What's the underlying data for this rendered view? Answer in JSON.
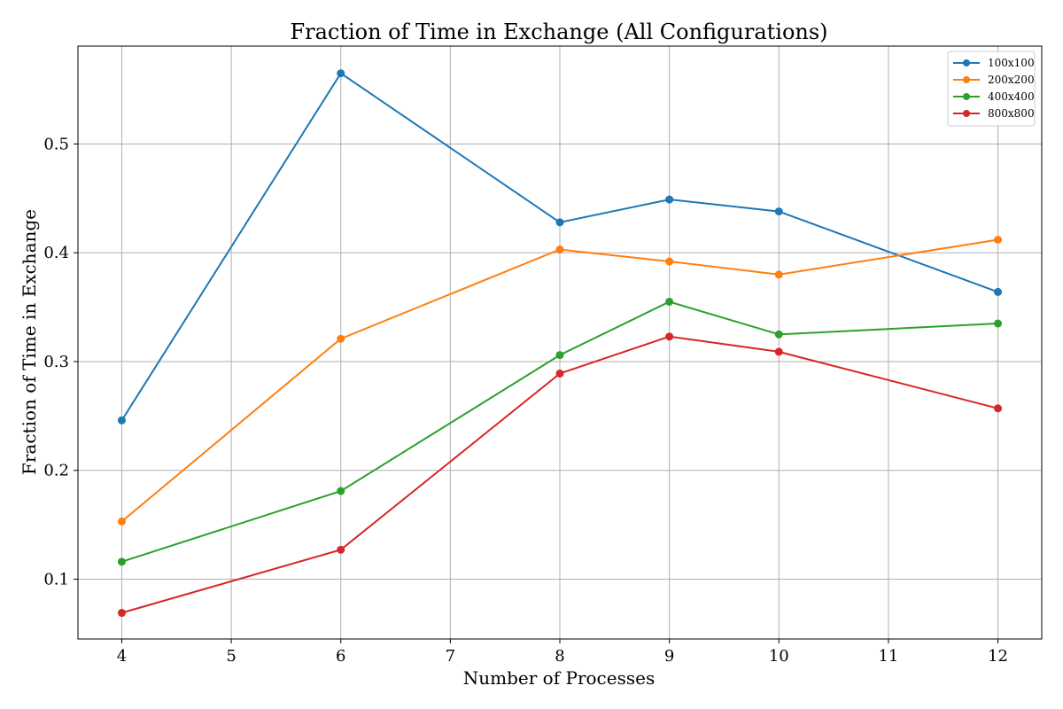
{
  "chart_data": {
    "type": "line",
    "title": "Fraction of Time in Exchange (All Configurations)",
    "xlabel": "Number of Processes",
    "ylabel": "Fraction of Time in Exchange",
    "x": [
      4,
      6,
      8,
      9,
      10,
      12
    ],
    "xlim": [
      3.6,
      12.4
    ],
    "ylim": [
      0.045,
      0.59
    ],
    "xticks": [
      4,
      5,
      6,
      7,
      8,
      9,
      10,
      11,
      12
    ],
    "yticks": [
      0.1,
      0.2,
      0.3,
      0.4,
      0.5
    ],
    "grid": true,
    "legend_position": "top-right",
    "series": [
      {
        "name": "100x100",
        "color": "#1f77b4",
        "values": [
          0.246,
          0.565,
          0.428,
          0.449,
          0.438,
          0.364
        ]
      },
      {
        "name": "200x200",
        "color": "#ff7f0e",
        "values": [
          0.153,
          0.321,
          0.403,
          0.392,
          0.38,
          0.412
        ]
      },
      {
        "name": "400x400",
        "color": "#2ca02c",
        "values": [
          0.116,
          0.181,
          0.306,
          0.355,
          0.325,
          0.335
        ]
      },
      {
        "name": "800x800",
        "color": "#d62728",
        "values": [
          0.069,
          0.127,
          0.289,
          0.323,
          0.309,
          0.257
        ]
      }
    ]
  }
}
